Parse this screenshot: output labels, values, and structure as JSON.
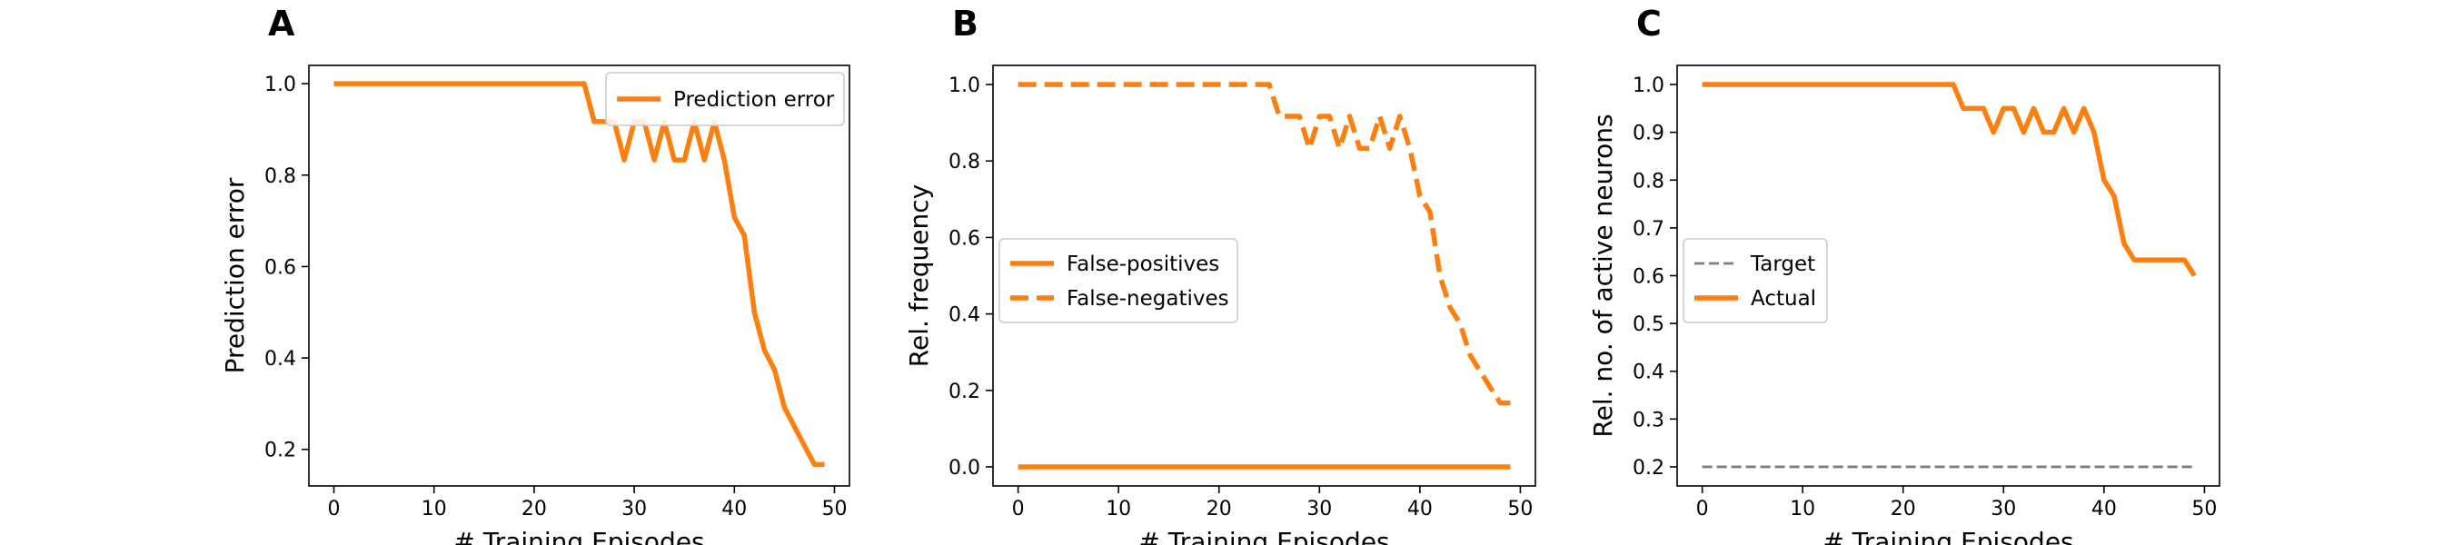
{
  "chart_data": [
    {
      "type": "line",
      "panel_label": "A",
      "title": "",
      "xlabel": "# Training Episodes",
      "ylabel": "Prediction error",
      "xlim": [
        -2.5,
        51.5
      ],
      "ylim": [
        0.12,
        1.04
      ],
      "xticks": [
        0,
        10,
        20,
        30,
        40,
        50
      ],
      "yticks": [
        0.2,
        0.4,
        0.6,
        0.8,
        1.0
      ],
      "xtick_labels": [
        "0",
        "10",
        "20",
        "30",
        "40",
        "50"
      ],
      "ytick_labels": [
        "0.2",
        "0.4",
        "0.6",
        "0.8",
        "1.0"
      ],
      "grid": false,
      "legend_position": "top-right",
      "series": [
        {
          "name": "Prediction error",
          "color": "#ff7f0e",
          "dash": "solid",
          "x": [
            0,
            1,
            2,
            3,
            4,
            5,
            6,
            7,
            8,
            9,
            10,
            11,
            12,
            13,
            14,
            15,
            16,
            17,
            18,
            19,
            20,
            21,
            22,
            23,
            24,
            25,
            26,
            27,
            28,
            29,
            30,
            31,
            32,
            33,
            34,
            35,
            36,
            37,
            38,
            39,
            40,
            41,
            42,
            43,
            44,
            45,
            46,
            47,
            48,
            49
          ],
          "y": [
            1.0,
            1.0,
            1.0,
            1.0,
            1.0,
            1.0,
            1.0,
            1.0,
            1.0,
            1.0,
            1.0,
            1.0,
            1.0,
            1.0,
            1.0,
            1.0,
            1.0,
            1.0,
            1.0,
            1.0,
            1.0,
            1.0,
            1.0,
            1.0,
            1.0,
            1.0,
            0.917,
            0.917,
            0.917,
            0.833,
            0.917,
            0.917,
            0.833,
            0.917,
            0.833,
            0.833,
            0.917,
            0.833,
            0.917,
            0.833,
            0.708,
            0.667,
            0.5,
            0.417,
            0.375,
            0.292,
            0.25,
            0.208,
            0.167,
            0.167
          ]
        }
      ]
    },
    {
      "type": "line",
      "panel_label": "B",
      "title": "",
      "xlabel": "# Training Episodes",
      "ylabel": "Rel. frequency",
      "xlim": [
        -2.5,
        51.5
      ],
      "ylim": [
        -0.05,
        1.05
      ],
      "xticks": [
        0,
        10,
        20,
        30,
        40,
        50
      ],
      "yticks": [
        0.0,
        0.2,
        0.4,
        0.6,
        0.8,
        1.0
      ],
      "xtick_labels": [
        "0",
        "10",
        "20",
        "30",
        "40",
        "50"
      ],
      "ytick_labels": [
        "0.0",
        "0.2",
        "0.4",
        "0.6",
        "0.8",
        "1.0"
      ],
      "grid": false,
      "legend_position": "center-left",
      "series": [
        {
          "name": "False-positives",
          "color": "#ff7f0e",
          "dash": "solid",
          "x": [
            0,
            49
          ],
          "y": [
            0.0,
            0.0
          ]
        },
        {
          "name": "False-negatives",
          "color": "#ff7f0e",
          "dash": "dashed",
          "x": [
            0,
            1,
            2,
            3,
            4,
            5,
            6,
            7,
            8,
            9,
            10,
            11,
            12,
            13,
            14,
            15,
            16,
            17,
            18,
            19,
            20,
            21,
            22,
            23,
            24,
            25,
            26,
            27,
            28,
            29,
            30,
            31,
            32,
            33,
            34,
            35,
            36,
            37,
            38,
            39,
            40,
            41,
            42,
            43,
            44,
            45,
            46,
            47,
            48,
            49
          ],
          "y": [
            1.0,
            1.0,
            1.0,
            1.0,
            1.0,
            1.0,
            1.0,
            1.0,
            1.0,
            1.0,
            1.0,
            1.0,
            1.0,
            1.0,
            1.0,
            1.0,
            1.0,
            1.0,
            1.0,
            1.0,
            1.0,
            1.0,
            1.0,
            1.0,
            1.0,
            1.0,
            0.917,
            0.917,
            0.917,
            0.833,
            0.917,
            0.917,
            0.833,
            0.917,
            0.833,
            0.833,
            0.917,
            0.833,
            0.917,
            0.833,
            0.708,
            0.667,
            0.5,
            0.417,
            0.375,
            0.292,
            0.25,
            0.208,
            0.167,
            0.167
          ]
        }
      ]
    },
    {
      "type": "line",
      "panel_label": "C",
      "title": "",
      "xlabel": "# Training Episodes",
      "ylabel": "Rel. no. of active neurons",
      "xlim": [
        -2.5,
        51.5
      ],
      "ylim": [
        0.16,
        1.04
      ],
      "xticks": [
        0,
        10,
        20,
        30,
        40,
        50
      ],
      "yticks": [
        0.2,
        0.3,
        0.4,
        0.5,
        0.6,
        0.7,
        0.8,
        0.9,
        1.0
      ],
      "xtick_labels": [
        "0",
        "10",
        "20",
        "30",
        "40",
        "50"
      ],
      "ytick_labels": [
        "0.2",
        "0.3",
        "0.4",
        "0.5",
        "0.6",
        "0.7",
        "0.8",
        "0.9",
        "1.0"
      ],
      "grid": false,
      "legend_position": "center-left",
      "series": [
        {
          "name": "Target",
          "color": "#7f7f7f",
          "dash": "dashed-thin",
          "x": [
            0,
            49
          ],
          "y": [
            0.2,
            0.2
          ]
        },
        {
          "name": "Actual",
          "color": "#ff7f0e",
          "dash": "solid",
          "x": [
            0,
            1,
            2,
            3,
            4,
            5,
            6,
            7,
            8,
            9,
            10,
            11,
            12,
            13,
            14,
            15,
            16,
            17,
            18,
            19,
            20,
            21,
            22,
            23,
            24,
            25,
            26,
            27,
            28,
            29,
            30,
            31,
            32,
            33,
            34,
            35,
            36,
            37,
            38,
            39,
            40,
            41,
            42,
            43,
            44,
            45,
            46,
            47,
            48,
            49
          ],
          "y": [
            1.0,
            1.0,
            1.0,
            1.0,
            1.0,
            1.0,
            1.0,
            1.0,
            1.0,
            1.0,
            1.0,
            1.0,
            1.0,
            1.0,
            1.0,
            1.0,
            1.0,
            1.0,
            1.0,
            1.0,
            1.0,
            1.0,
            1.0,
            1.0,
            1.0,
            1.0,
            0.95,
            0.95,
            0.95,
            0.9,
            0.95,
            0.95,
            0.9,
            0.95,
            0.9,
            0.9,
            0.95,
            0.9,
            0.95,
            0.9,
            0.8,
            0.767,
            0.667,
            0.633,
            0.633,
            0.633,
            0.633,
            0.633,
            0.633,
            0.6
          ]
        }
      ]
    }
  ]
}
